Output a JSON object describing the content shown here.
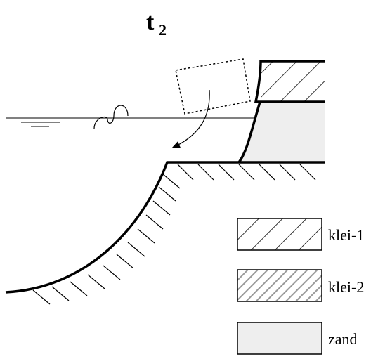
{
  "title": {
    "main": "t",
    "subscript": "2"
  },
  "legend": {
    "items": [
      {
        "label": "klei-1",
        "pattern": "sparse-diagonal-hatch",
        "color": "#000000"
      },
      {
        "label": "klei-2",
        "pattern": "dense-gray-diagonal-hatch",
        "color": "#9a9a9a"
      },
      {
        "label": "zand",
        "pattern": "solid-fill",
        "color": "#eeeeee"
      }
    ]
  },
  "colors": {
    "line": "#000000",
    "sand": "#eeeeee",
    "clay2": "#9a9a9a",
    "background": "#ffffff"
  }
}
